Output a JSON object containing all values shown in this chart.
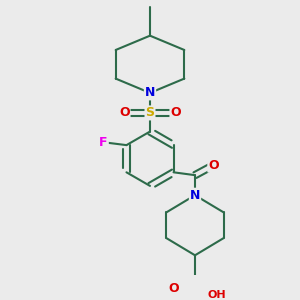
{
  "bg_color": "#ebebeb",
  "bond_color": "#2d6b4a",
  "bond_width": 1.5,
  "atom_colors": {
    "N": "#0000dd",
    "S": "#ccaa00",
    "O": "#dd0000",
    "F": "#ee00ee",
    "C": "#2d6b4a",
    "H": "#606060"
  },
  "font_size": 9,
  "title": ""
}
